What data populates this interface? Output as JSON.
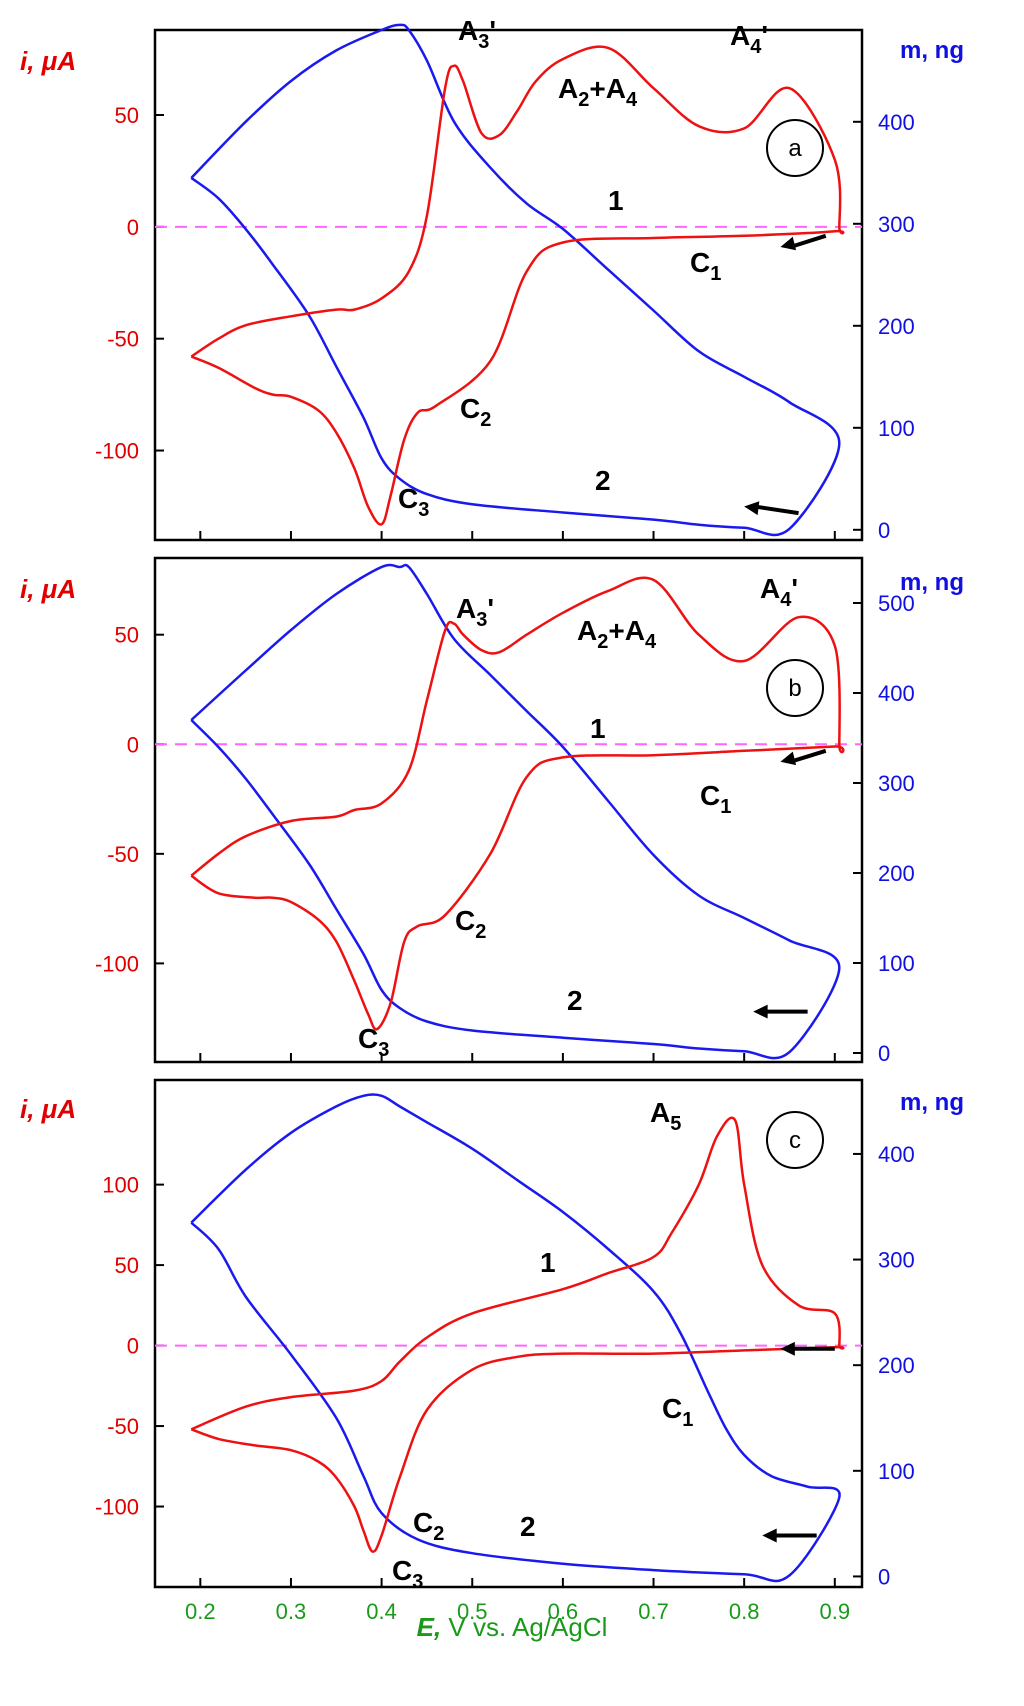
{
  "chart_data": [
    {
      "panel": "a",
      "type": "line",
      "xlim": [
        0.15,
        0.93
      ],
      "ylim_left": [
        -140,
        88
      ],
      "ylim_right": [
        -10,
        490
      ],
      "yticks_left": [
        "50",
        "0",
        "-50",
        "-100"
      ],
      "yticks_left_values": [
        50,
        0,
        -50,
        -100
      ],
      "yticks_right": [
        "400",
        "300",
        "200",
        "100",
        "0"
      ],
      "yticks_right_values": [
        400,
        300,
        200,
        100,
        0
      ],
      "ylabel_left": "i, μA",
      "ylabel_right": "m,  ng",
      "zero_line": 0,
      "current_series": {
        "x": [
          0.19,
          0.22,
          0.26,
          0.28,
          0.3,
          0.33,
          0.35,
          0.37,
          0.385,
          0.4,
          0.41,
          0.425,
          0.44,
          0.46,
          0.52,
          0.56,
          0.6,
          0.7,
          0.8,
          0.9,
          0.905,
          0.9,
          0.85,
          0.8,
          0.75,
          0.7,
          0.65,
          0.6,
          0.57,
          0.55,
          0.53,
          0.51,
          0.49,
          0.48,
          0.47,
          0.45,
          0.43,
          0.4,
          0.37,
          0.35,
          0.3,
          0.25,
          0.22,
          0.19
        ],
        "y": [
          -58,
          -63,
          -72,
          -75,
          -76,
          -82,
          -92,
          -108,
          -125,
          -133,
          -120,
          -95,
          -83,
          -80,
          -60,
          -20,
          -7,
          -5,
          -4,
          -2,
          0,
          30,
          62,
          44,
          45,
          62,
          80,
          75,
          65,
          52,
          41,
          42,
          65,
          72,
          62,
          5,
          -20,
          -32,
          -37,
          -37,
          -40,
          -44,
          -50,
          -58
        ]
      },
      "mass_series": {
        "x": [
          0.19,
          0.25,
          0.3,
          0.35,
          0.4,
          0.42,
          0.43,
          0.45,
          0.48,
          0.52,
          0.56,
          0.6,
          0.65,
          0.7,
          0.75,
          0.8,
          0.85,
          0.905,
          0.85,
          0.8,
          0.75,
          0.7,
          0.6,
          0.5,
          0.45,
          0.42,
          0.4,
          0.38,
          0.35,
          0.32,
          0.28,
          0.25,
          0.22,
          0.19
        ],
        "y": [
          345,
          400,
          440,
          470,
          490,
          495,
          490,
          460,
          400,
          355,
          320,
          295,
          255,
          215,
          175,
          150,
          125,
          85,
          1,
          2,
          5,
          10,
          17,
          25,
          35,
          50,
          70,
          110,
          160,
          210,
          260,
          295,
          325,
          345
        ]
      },
      "annotations": [
        {
          "base": "A",
          "sub": "3",
          "suffix": "'"
        },
        {
          "base": "A",
          "sub": "2",
          "suffix": "+A",
          "sub2": "4"
        },
        {
          "base": "A",
          "sub": "4",
          "suffix": "'"
        },
        {
          "base": "1"
        },
        {
          "base": "C",
          "sub": "1"
        },
        {
          "base": "C",
          "sub": "2"
        },
        {
          "base": "C",
          "sub": "3"
        },
        {
          "base": "2"
        }
      ],
      "arrows": [
        {
          "from": [
            0.89,
            -4
          ],
          "to": [
            0.84,
            -9
          ]
        },
        {
          "from": [
            0.86,
            -128
          ],
          "to": [
            0.8,
            -125
          ]
        }
      ]
    },
    {
      "panel": "b",
      "type": "line",
      "xlim": [
        0.15,
        0.93
      ],
      "ylim_left": [
        -145,
        85
      ],
      "ylim_right": [
        -10,
        550
      ],
      "yticks_left": [
        "50",
        "0",
        "-50",
        "-100"
      ],
      "yticks_left_values": [
        50,
        0,
        -50,
        -100
      ],
      "yticks_right": [
        "500",
        "400",
        "300",
        "200",
        "100",
        "0"
      ],
      "yticks_right_values": [
        500,
        400,
        300,
        200,
        100,
        0
      ],
      "ylabel_left": "i, μA",
      "ylabel_right": "m,  ng",
      "zero_line": 0,
      "current_series": {
        "x": [
          0.19,
          0.22,
          0.26,
          0.28,
          0.3,
          0.33,
          0.35,
          0.37,
          0.385,
          0.395,
          0.41,
          0.425,
          0.44,
          0.47,
          0.52,
          0.56,
          0.6,
          0.7,
          0.8,
          0.9,
          0.905,
          0.9,
          0.86,
          0.8,
          0.75,
          0.7,
          0.65,
          0.6,
          0.56,
          0.53,
          0.51,
          0.49,
          0.48,
          0.47,
          0.45,
          0.43,
          0.4,
          0.37,
          0.35,
          0.3,
          0.25,
          0.22,
          0.19
        ],
        "y": [
          -60,
          -68,
          -70,
          -70,
          -72,
          -80,
          -90,
          -108,
          -123,
          -130,
          -118,
          -90,
          -83,
          -78,
          -50,
          -15,
          -6,
          -5,
          -3,
          -1,
          0,
          45,
          58,
          38,
          50,
          75,
          70,
          60,
          50,
          42,
          43,
          50,
          55,
          52,
          20,
          -12,
          -27,
          -30,
          -33,
          -35,
          -42,
          -50,
          -60
        ]
      },
      "mass_series": {
        "x": [
          0.19,
          0.25,
          0.3,
          0.35,
          0.4,
          0.42,
          0.43,
          0.45,
          0.48,
          0.52,
          0.56,
          0.6,
          0.65,
          0.7,
          0.75,
          0.8,
          0.85,
          0.905,
          0.85,
          0.8,
          0.75,
          0.7,
          0.6,
          0.5,
          0.45,
          0.42,
          0.4,
          0.38,
          0.35,
          0.32,
          0.28,
          0.25,
          0.22,
          0.19
        ],
        "y": [
          370,
          425,
          470,
          510,
          540,
          540,
          540,
          510,
          460,
          420,
          380,
          340,
          280,
          220,
          175,
          150,
          125,
          95,
          1,
          2,
          5,
          10,
          17,
          25,
          35,
          50,
          70,
          110,
          160,
          210,
          265,
          305,
          340,
          370
        ]
      },
      "annotations": [
        {
          "base": "A",
          "sub": "3",
          "suffix": "'"
        },
        {
          "base": "A",
          "sub": "2",
          "suffix": "+A",
          "sub2": "4"
        },
        {
          "base": "A",
          "sub": "4",
          "suffix": "'"
        },
        {
          "base": "1"
        },
        {
          "base": "C",
          "sub": "1"
        },
        {
          "base": "C",
          "sub": "2"
        },
        {
          "base": "C",
          "sub": "3"
        },
        {
          "base": "2"
        }
      ],
      "arrows": [
        {
          "from": [
            0.89,
            -3
          ],
          "to": [
            0.84,
            -8
          ]
        },
        {
          "from": [
            0.87,
            -122
          ],
          "to": [
            0.81,
            -122
          ]
        }
      ]
    },
    {
      "panel": "c",
      "type": "line",
      "xlim": [
        0.15,
        0.93
      ],
      "ylim_left": [
        -150,
        165
      ],
      "ylim_right": [
        -10,
        470
      ],
      "yticks_left": [
        "100",
        "50",
        "0",
        "-50",
        "-100"
      ],
      "yticks_left_values": [
        100,
        50,
        0,
        -50,
        -100
      ],
      "yticks_right": [
        "400",
        "300",
        "200",
        "100",
        "0"
      ],
      "yticks_right_values": [
        400,
        300,
        200,
        100,
        0
      ],
      "ylabel_left": "i, μA",
      "ylabel_right": "m,  ng",
      "zero_line": 0,
      "current_series": {
        "x": [
          0.19,
          0.22,
          0.26,
          0.3,
          0.33,
          0.35,
          0.37,
          0.38,
          0.39,
          0.4,
          0.42,
          0.45,
          0.5,
          0.55,
          0.6,
          0.7,
          0.8,
          0.9,
          0.905,
          0.9,
          0.86,
          0.82,
          0.8,
          0.79,
          0.77,
          0.75,
          0.72,
          0.7,
          0.65,
          0.6,
          0.5,
          0.45,
          0.42,
          0.4,
          0.37,
          0.3,
          0.25,
          0.19
        ],
        "y": [
          -52,
          -58,
          -62,
          -65,
          -72,
          -82,
          -100,
          -115,
          -128,
          -118,
          -82,
          -40,
          -15,
          -7,
          -5,
          -5,
          -3,
          -1,
          0,
          20,
          25,
          50,
          100,
          140,
          130,
          100,
          70,
          55,
          45,
          35,
          20,
          5,
          -10,
          -22,
          -28,
          -32,
          -38,
          -52
        ]
      },
      "mass_series": {
        "x": [
          0.19,
          0.25,
          0.3,
          0.35,
          0.38,
          0.4,
          0.42,
          0.45,
          0.5,
          0.55,
          0.6,
          0.65,
          0.7,
          0.73,
          0.76,
          0.78,
          0.8,
          0.83,
          0.87,
          0.905,
          0.85,
          0.8,
          0.7,
          0.6,
          0.5,
          0.44,
          0.4,
          0.38,
          0.35,
          0.3,
          0.25,
          0.22,
          0.19
        ],
        "y": [
          335,
          385,
          420,
          445,
          455,
          455,
          445,
          430,
          405,
          375,
          345,
          310,
          270,
          230,
          175,
          140,
          115,
          95,
          85,
          75,
          1,
          2,
          6,
          12,
          22,
          35,
          60,
          95,
          150,
          210,
          265,
          310,
          335
        ]
      },
      "annotations": [
        {
          "base": "A",
          "sub": "5"
        },
        {
          "base": "1"
        },
        {
          "base": "C",
          "sub": "1"
        },
        {
          "base": "C",
          "sub": "2"
        },
        {
          "base": "C",
          "sub": "3"
        },
        {
          "base": "2"
        }
      ],
      "arrows": [
        {
          "from": [
            0.9,
            -2
          ],
          "to": [
            0.84,
            -2
          ]
        },
        {
          "from": [
            0.88,
            -118
          ],
          "to": [
            0.82,
            -118
          ]
        }
      ]
    }
  ],
  "x_axis": {
    "ticks": [
      "0.2",
      "0.3",
      "0.4",
      "0.5",
      "0.6",
      "0.7",
      "0.8",
      "0.9"
    ],
    "tick_values": [
      0.2,
      0.3,
      0.4,
      0.5,
      0.6,
      0.7,
      0.8,
      0.9
    ],
    "label_italic": "E,",
    "label_rest": " V vs. Ag/AgCl"
  },
  "colors": {
    "current": "#ee1111",
    "mass": "#1a1aee",
    "zero_line": "#ff66ff",
    "axis": "#000000",
    "left_ticks": "#e00000",
    "right_ticks": "#1010e0",
    "x_ticks": "#1a9a1a"
  }
}
